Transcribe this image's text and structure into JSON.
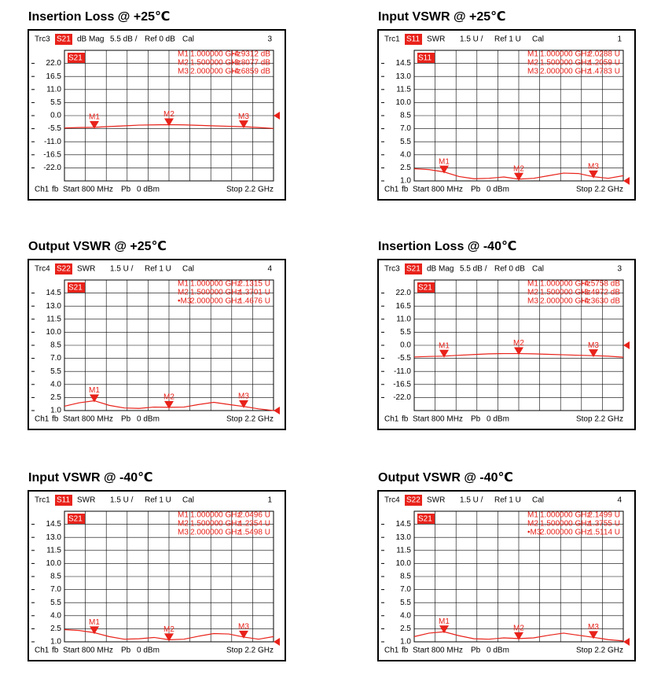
{
  "chart_data": [
    {
      "type": "line",
      "title": "Insertion Loss @ +25℃",
      "trace": "Trc3",
      "param": "S21",
      "format": "dB Mag",
      "scale": "5.5 dB /",
      "ref": "Ref 0 dB",
      "status": "Cal",
      "channel": "3",
      "trace_label": "S21",
      "markers": [
        {
          "name": "M1",
          "readout_name": "M1",
          "x": 1.0,
          "freq_label": "1.000000 GHz",
          "value": -4.9312,
          "value_label": "-4.9312 dB"
        },
        {
          "name": "M2",
          "readout_name": "M2",
          "x": 1.5,
          "freq_label": "1.500000 GHz",
          "value": -3.8077,
          "value_label": "-3.8077 dB"
        },
        {
          "name": "M3",
          "readout_name": "M3",
          "x": 2.0,
          "freq_label": "2.000000 GHz",
          "value": -4.6859,
          "value_label": "-4.6859 dB"
        }
      ],
      "footer": {
        "channel": "Ch1",
        "fb": "fb",
        "start": "Start 800 MHz",
        "power_label": "Pb",
        "power": "0 dBm",
        "stop": "Stop 2.2 GHz"
      },
      "x": [
        0.8,
        0.9,
        1.0,
        1.1,
        1.2,
        1.3,
        1.4,
        1.5,
        1.6,
        1.7,
        1.8,
        1.9,
        2.0,
        2.1,
        2.2
      ],
      "values": [
        -5.2,
        -5.0,
        -4.9312,
        -4.6,
        -4.3,
        -4.0,
        -3.9,
        -3.8077,
        -3.9,
        -4.1,
        -4.3,
        -4.5,
        -4.6859,
        -5.0,
        -5.4
      ],
      "color": "#e8221a",
      "xlim": [
        0.8,
        2.2
      ],
      "ylim": [
        -27.5,
        27.5
      ],
      "grid": true,
      "yticks": [
        {
          "value": 22,
          "label": "22.0"
        },
        16.5,
        {
          "value": 11,
          "label": "11.0"
        },
        5.5,
        {
          "value": 0,
          "label": "0.0"
        },
        -5.5,
        {
          "value": -11,
          "label": "-11.0"
        },
        -16.5,
        {
          "value": -22,
          "label": "-22.0"
        }
      ]
    },
    {
      "type": "line",
      "title": "Input VSWR @ +25℃",
      "trace": "Trc1",
      "param": "S11",
      "format": "SWR",
      "scale": "1.5 U /",
      "ref": "Ref 1 U",
      "status": "Cal",
      "channel": "1",
      "trace_label": "S11",
      "markers": [
        {
          "name": "M1",
          "readout_name": "M1",
          "x": 1.0,
          "freq_label": "1.000000 GHz",
          "value": 2.0288,
          "value_label": "2.0288 U"
        },
        {
          "name": "M2",
          "readout_name": "M2",
          "x": 1.5,
          "freq_label": "1.500000 GHz",
          "value": 1.2059,
          "value_label": "1.2059 U"
        },
        {
          "name": "M3",
          "readout_name": "M3",
          "x": 2.0,
          "freq_label": "2.000000 GHz",
          "value": 1.4783,
          "value_label": "1.4783 U"
        }
      ],
      "footer": {
        "channel": "Ch1",
        "fb": "fb",
        "start": "Start 800 MHz",
        "power_label": "Pb",
        "power": "0 dBm",
        "stop": "Stop 2.2 GHz"
      },
      "x": [
        0.8,
        0.9,
        1.0,
        1.1,
        1.2,
        1.3,
        1.4,
        1.5,
        1.6,
        1.7,
        1.8,
        1.9,
        2.0,
        2.1,
        2.2
      ],
      "values": [
        2.4,
        2.3,
        2.0288,
        1.5,
        1.25,
        1.3,
        1.45,
        1.2059,
        1.3,
        1.6,
        1.9,
        1.85,
        1.4783,
        1.3,
        1.6
      ],
      "color": "#e8221a",
      "xlim": [
        0.8,
        2.2
      ],
      "ylim": [
        1,
        16
      ],
      "grid": true,
      "yticks": [
        {
          "value": 1,
          "label": "1.0"
        },
        2.5,
        {
          "value": 4,
          "label": "4.0"
        },
        5.5,
        {
          "value": 7,
          "label": "7.0"
        },
        8.5,
        {
          "value": 10,
          "label": "10.0"
        },
        11.5,
        {
          "value": 13,
          "label": "13.0"
        },
        14.5
      ]
    },
    {
      "type": "line",
      "title": "Output VSWR @ +25℃",
      "trace": "Trc4",
      "param": "S22",
      "format": "SWR",
      "scale": "1.5 U /",
      "ref": "Ref 1 U",
      "status": "Cal",
      "channel": "4",
      "trace_label": "S21",
      "markers": [
        {
          "name": "M1",
          "readout_name": "M1",
          "x": 1.0,
          "freq_label": "1.000000 GHz",
          "value": 2.1315,
          "value_label": "2.1315 U"
        },
        {
          "name": "M2",
          "readout_name": "M2",
          "x": 1.5,
          "freq_label": "1.500000 GHz",
          "value": 1.3701,
          "value_label": "1.3701 U"
        },
        {
          "name": "M3",
          "readout_name": "•M3",
          "x": 2.0,
          "freq_label": "2.000000 GHz",
          "value": 1.4676,
          "value_label": "1.4676 U"
        }
      ],
      "footer": {
        "channel": "Ch1",
        "fb": "fb",
        "start": "Start 800 MHz",
        "power_label": "Pb",
        "power": "0 dBm",
        "stop": "Stop 2.2 GHz"
      },
      "x": [
        0.8,
        0.9,
        1.0,
        1.1,
        1.2,
        1.3,
        1.4,
        1.5,
        1.6,
        1.7,
        1.8,
        1.9,
        2.0,
        2.1,
        2.2
      ],
      "values": [
        1.5,
        1.9,
        2.1315,
        1.6,
        1.3,
        1.25,
        1.4,
        1.3701,
        1.4,
        1.7,
        1.95,
        1.7,
        1.4676,
        1.2,
        1.0
      ],
      "color": "#e8221a",
      "xlim": [
        0.8,
        2.2
      ],
      "ylim": [
        1,
        16
      ],
      "grid": true,
      "yticks": [
        {
          "value": 1,
          "label": "1.0"
        },
        2.5,
        {
          "value": 4,
          "label": "4.0"
        },
        5.5,
        {
          "value": 7,
          "label": "7.0"
        },
        8.5,
        {
          "value": 10,
          "label": "10.0"
        },
        11.5,
        {
          "value": 13,
          "label": "13.0"
        },
        14.5
      ]
    },
    {
      "type": "line",
      "title": "Insertion Loss @ -40℃",
      "trace": "Trc3",
      "param": "S21",
      "format": "dB Mag",
      "scale": "5.5 dB /",
      "ref": "Ref 0 dB",
      "status": "Cal",
      "channel": "3",
      "trace_label": "S21",
      "markers": [
        {
          "name": "M1",
          "readout_name": "M1",
          "x": 1.0,
          "freq_label": "1.000000 GHz",
          "value": -4.5758,
          "value_label": "-4.5758 dB"
        },
        {
          "name": "M2",
          "readout_name": "M2",
          "x": 1.5,
          "freq_label": "1.500000 GHz",
          "value": -3.4972,
          "value_label": "-3.4972 dB"
        },
        {
          "name": "M3",
          "readout_name": "M3",
          "x": 2.0,
          "freq_label": "2.000000 GHz",
          "value": -4.363,
          "value_label": "-4.3630 dB"
        }
      ],
      "footer": {
        "channel": "Ch1",
        "fb": "fb",
        "start": "Start 800 MHz",
        "power_label": "Pb",
        "power": "0 dBm",
        "stop": "Stop 2.2 GHz"
      },
      "x": [
        0.8,
        0.9,
        1.0,
        1.1,
        1.2,
        1.3,
        1.4,
        1.5,
        1.6,
        1.7,
        1.8,
        1.9,
        2.0,
        2.1,
        2.2
      ],
      "values": [
        -4.9,
        -4.7,
        -4.5758,
        -4.2,
        -3.9,
        -3.6,
        -3.5,
        -3.4972,
        -3.6,
        -3.8,
        -4.0,
        -4.2,
        -4.363,
        -4.6,
        -5.0
      ],
      "color": "#e8221a",
      "xlim": [
        0.8,
        2.2
      ],
      "ylim": [
        -27.5,
        27.5
      ],
      "grid": true,
      "yticks": [
        {
          "value": 22,
          "label": "22.0"
        },
        16.5,
        {
          "value": 11,
          "label": "11.0"
        },
        5.5,
        {
          "value": 0,
          "label": "0.0"
        },
        -5.5,
        {
          "value": -11,
          "label": "-11.0"
        },
        -16.5,
        {
          "value": -22,
          "label": "-22.0"
        }
      ]
    },
    {
      "type": "line",
      "title": "Input VSWR @ -40℃",
      "trace": "Trc1",
      "param": "S11",
      "format": "SWR",
      "scale": "1.5 U /",
      "ref": "Ref 1 U",
      "status": "Cal",
      "channel": "1",
      "trace_label": "S21",
      "markers": [
        {
          "name": "M1",
          "readout_name": "M1",
          "x": 1.0,
          "freq_label": "1.000000 GHz",
          "value": 2.0496,
          "value_label": "2.0496 U"
        },
        {
          "name": "M2",
          "readout_name": "M2",
          "x": 1.5,
          "freq_label": "1.500000 GHz",
          "value": 1.2354,
          "value_label": "1.2354 U"
        },
        {
          "name": "M3",
          "readout_name": "M3",
          "x": 2.0,
          "freq_label": "2.000000 GHz",
          "value": 1.5498,
          "value_label": "1.5498 U"
        }
      ],
      "footer": {
        "channel": "Ch1",
        "fb": "fb",
        "start": "Start 800 MHz",
        "power_label": "Pb",
        "power": "0 dBm",
        "stop": "Stop 2.2 GHz"
      },
      "x": [
        0.8,
        0.9,
        1.0,
        1.1,
        1.2,
        1.3,
        1.4,
        1.5,
        1.6,
        1.7,
        1.8,
        1.9,
        2.0,
        2.1,
        2.2
      ],
      "values": [
        2.4,
        2.3,
        2.0496,
        1.6,
        1.3,
        1.35,
        1.5,
        1.2354,
        1.3,
        1.65,
        1.95,
        1.9,
        1.5498,
        1.3,
        1.6
      ],
      "color": "#e8221a",
      "xlim": [
        0.8,
        2.2
      ],
      "ylim": [
        1,
        16
      ],
      "grid": true,
      "yticks": [
        {
          "value": 1,
          "label": "1.0"
        },
        2.5,
        {
          "value": 4,
          "label": "4.0"
        },
        5.5,
        {
          "value": 7,
          "label": "7.0"
        },
        8.5,
        {
          "value": 10,
          "label": "10.0"
        },
        11.5,
        {
          "value": 13,
          "label": "13.0"
        },
        14.5
      ]
    },
    {
      "type": "line",
      "title": "Output VSWR @ -40℃",
      "trace": "Trc4",
      "param": "S22",
      "format": "SWR",
      "scale": "1.5 U /",
      "ref": "Ref 1 U",
      "status": "Cal",
      "channel": "4",
      "trace_label": "S21",
      "markers": [
        {
          "name": "M1",
          "readout_name": "M1",
          "x": 1.0,
          "freq_label": "1.000000 GHz",
          "value": 2.1499,
          "value_label": "2.1499 U"
        },
        {
          "name": "M2",
          "readout_name": "M2",
          "x": 1.5,
          "freq_label": "1.500000 GHz",
          "value": 1.3755,
          "value_label": "1.3755 U"
        },
        {
          "name": "M3",
          "readout_name": "•M3",
          "x": 2.0,
          "freq_label": "2.000000 GHz",
          "value": 1.5114,
          "value_label": "1.5114 U"
        }
      ],
      "footer": {
        "channel": "Ch1",
        "fb": "fb",
        "start": "Start 800 MHz",
        "power_label": "Pb",
        "power": "0 dBm",
        "stop": "Stop 2.2 GHz"
      },
      "x": [
        0.8,
        0.9,
        1.0,
        1.1,
        1.2,
        1.3,
        1.4,
        1.5,
        1.6,
        1.7,
        1.8,
        1.9,
        2.0,
        2.1,
        2.2
      ],
      "values": [
        1.6,
        2.0,
        2.1499,
        1.7,
        1.35,
        1.3,
        1.45,
        1.3755,
        1.45,
        1.75,
        2.0,
        1.75,
        1.5114,
        1.25,
        1.1
      ],
      "color": "#e8221a",
      "xlim": [
        0.8,
        2.2
      ],
      "ylim": [
        1,
        16
      ],
      "grid": true,
      "yticks": [
        {
          "value": 1,
          "label": "1.0"
        },
        2.5,
        {
          "value": 4,
          "label": "4.0"
        },
        5.5,
        {
          "value": 7,
          "label": "7.0"
        },
        8.5,
        {
          "value": 10,
          "label": "10.0"
        },
        11.5,
        {
          "value": 13,
          "label": "13.0"
        },
        14.5
      ]
    }
  ]
}
